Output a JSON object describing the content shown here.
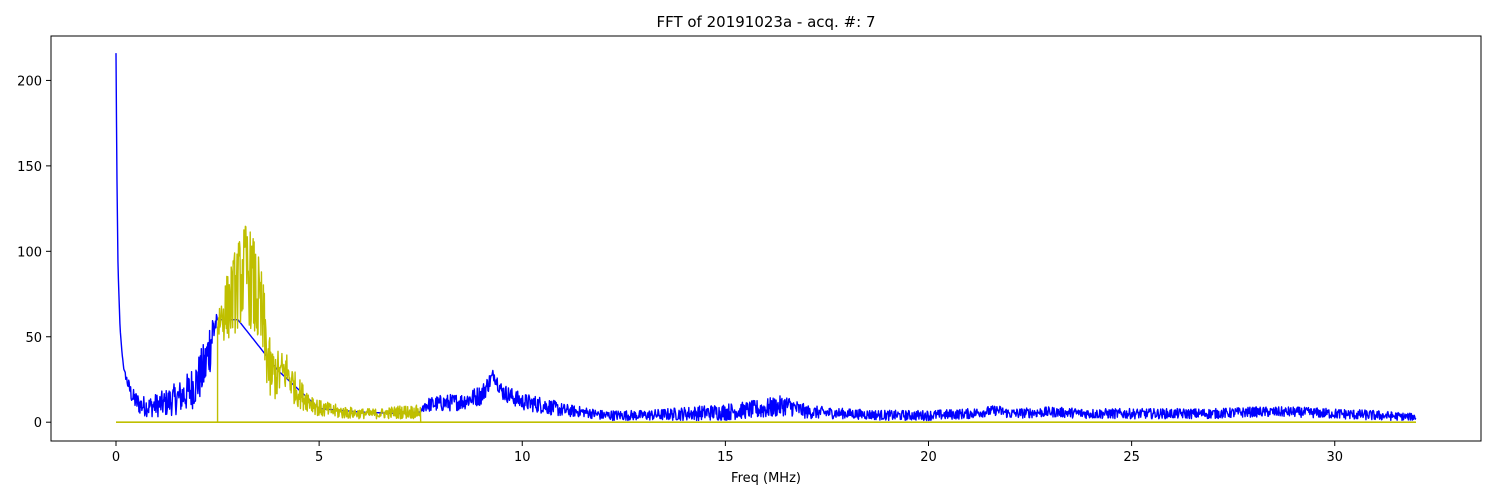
{
  "chart_data": {
    "type": "line",
    "title": "FFT of 20191023a - acq. #: 7",
    "xlabel": "Freq (MHz)",
    "ylabel": "",
    "xlim": [
      -1.6,
      33.6
    ],
    "ylim": [
      -11,
      226
    ],
    "xticks": [
      0,
      5,
      10,
      15,
      20,
      25,
      30
    ],
    "yticks": [
      0,
      50,
      100,
      150,
      200
    ],
    "grid": false,
    "legend": "none",
    "colors": {
      "spectrum": "#0000ff",
      "band": "#bfbf00"
    },
    "series": [
      {
        "color": "#0000ff",
        "x": [
          0.0,
          0.02,
          0.05,
          0.1,
          0.15,
          0.2,
          0.3,
          0.4,
          0.5,
          0.6,
          0.8,
          1.0,
          1.2,
          1.4,
          1.6,
          1.8,
          2.0,
          2.2,
          2.4,
          2.5,
          3.0,
          4.0,
          5.0,
          6.0,
          7.0,
          7.5,
          7.6,
          8.0,
          8.5,
          9.0,
          9.2,
          9.3,
          9.5,
          10.0,
          10.5,
          11.0,
          11.5,
          12.0,
          13.0,
          14.0,
          15.0,
          15.5,
          16.0,
          16.5,
          17.0,
          18.0,
          19.0,
          20.0,
          21.0,
          21.7,
          22.0,
          23.0,
          24.0,
          25.0,
          26.0,
          27.0,
          28.0,
          29.0,
          30.0,
          31.0,
          32.0
        ],
        "y": [
          216,
          150,
          90,
          55,
          40,
          30,
          22,
          15,
          12,
          10,
          9,
          10,
          11,
          13,
          15,
          18,
          24,
          33,
          55,
          60,
          60,
          30,
          8,
          6,
          5,
          6,
          10,
          11,
          12,
          16,
          24,
          28,
          18,
          12,
          10,
          7,
          6,
          4,
          4,
          5,
          6,
          7,
          8,
          10,
          6,
          5,
          4,
          4,
          5,
          7,
          5,
          6,
          5,
          5,
          5,
          5,
          6,
          6,
          5,
          4,
          3
        ],
        "noise": [
          0,
          0,
          0,
          0,
          0,
          1,
          4,
          5,
          6,
          6,
          6,
          7,
          8,
          9,
          10,
          12,
          14,
          16,
          18,
          0,
          0,
          0,
          0,
          0,
          0,
          0,
          4,
          5,
          5,
          6,
          5,
          4,
          5,
          5,
          5,
          4,
          3,
          3,
          3,
          4,
          5,
          5,
          6,
          6,
          4,
          3,
          3,
          3,
          3,
          3,
          3,
          3,
          3,
          3,
          3,
          3,
          3,
          3,
          3,
          3,
          2
        ]
      },
      {
        "color": "#bfbf00",
        "x": [
          2.5,
          2.6,
          2.8,
          3.0,
          3.2,
          3.4,
          3.6,
          3.8,
          4.0,
          4.2,
          4.4,
          4.6,
          4.8,
          5.0,
          5.5,
          6.0,
          6.5,
          7.0,
          7.5
        ],
        "y": [
          58,
          62,
          70,
          80,
          90,
          78,
          60,
          28,
          28,
          30,
          20,
          15,
          12,
          8,
          6,
          5,
          5,
          6,
          6
        ],
        "noise": [
          10,
          15,
          22,
          26,
          28,
          30,
          28,
          18,
          14,
          12,
          10,
          8,
          6,
          5,
          4,
          3,
          3,
          4,
          4
        ]
      }
    ],
    "baseline": {
      "color": "#bfbf00",
      "x": [
        0,
        2.5,
        7.5,
        32
      ],
      "y": [
        0,
        0,
        0,
        0
      ]
    }
  }
}
